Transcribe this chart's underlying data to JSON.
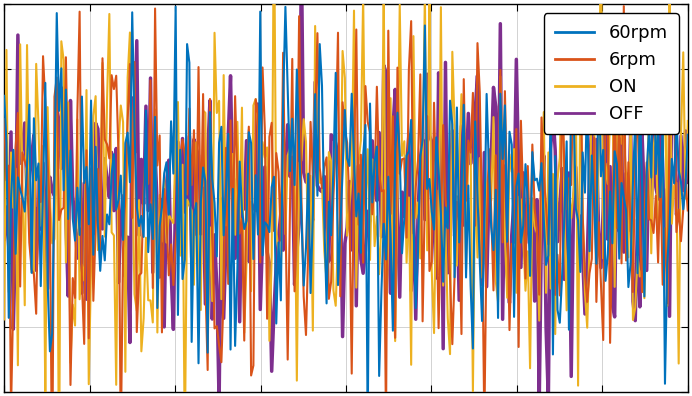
{
  "title": "",
  "xlabel": "",
  "ylabel": "",
  "legend_labels": [
    "60rpm",
    "6rpm",
    "ON",
    "OFF"
  ],
  "colors": [
    "#0072BD",
    "#D95319",
    "#EDB120",
    "#7E2F8E"
  ],
  "xlim": [
    0,
    1
  ],
  "ylim": [
    -1.5,
    1.5
  ],
  "n_samples": 300,
  "background_color": "#ffffff",
  "grid_color": "#c0c0c0",
  "font_size": 13,
  "seeds": [
    10,
    20,
    30,
    40
  ],
  "amplitudes": [
    0.6,
    0.7,
    0.75,
    0.55
  ],
  "linewidths": [
    1.5,
    1.5,
    1.5,
    2.5
  ]
}
